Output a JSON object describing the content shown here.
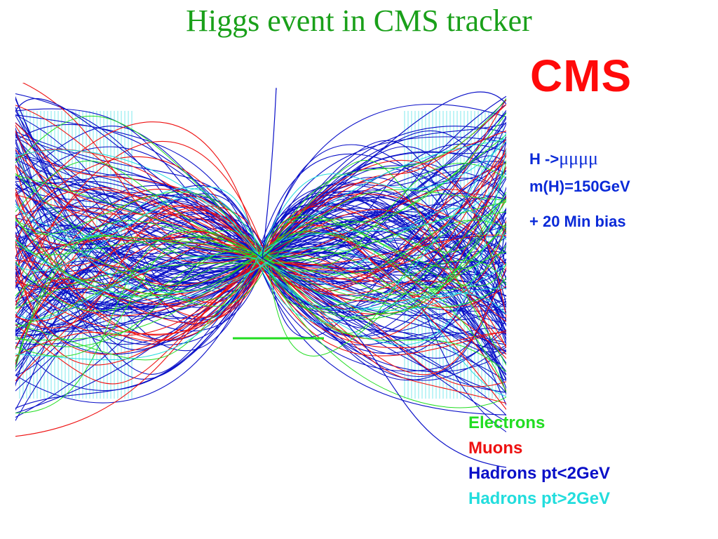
{
  "title": "Higgs event in CMS tracker",
  "logo_text": "CMS",
  "info": {
    "decay_prefix": "H ->",
    "decay_symbol": "μμμμ",
    "mass": "m(H)=150GeV",
    "pileup": "+ 20 Min bias"
  },
  "legend": [
    {
      "label": "Electrons",
      "color": "#22dd22"
    },
    {
      "label": "Muons",
      "color": "#ee1111"
    },
    {
      "label": "Hadrons pt<2GeV",
      "color": "#0a10c8"
    },
    {
      "label": "Hadrons pt>2GeV",
      "color": "#22dddd"
    }
  ],
  "colors": {
    "title": "#1aa01a",
    "logo": "#ff0a0a",
    "info": "#0a2ad8",
    "detector_layers": "#7fe8ee"
  }
}
